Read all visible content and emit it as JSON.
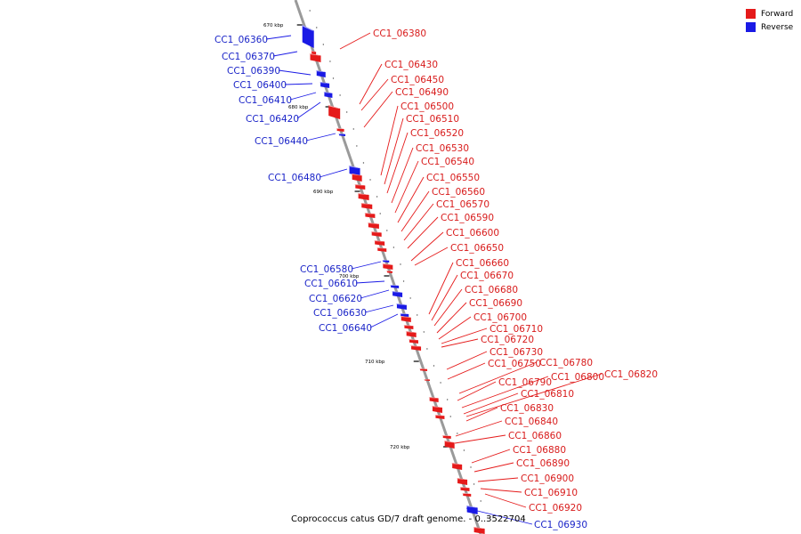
{
  "legend": {
    "forward_label": "Forward",
    "reverse_label": "Reverse",
    "forward_color": "#e51a1a",
    "reverse_color": "#1a1ae5"
  },
  "caption": "Coprococcus catus GD/7 draft genome. - 0..3522704",
  "ticks": [
    "670 kbp",
    "680 kbp",
    "690 kbp",
    "700 kbp",
    "710 kbp",
    "720 kbp"
  ],
  "genes": [
    {
      "id": "CC1_06360",
      "strand": "reverse"
    },
    {
      "id": "CC1_06370",
      "strand": "reverse"
    },
    {
      "id": "CC1_06380",
      "strand": "forward"
    },
    {
      "id": "CC1_06390",
      "strand": "reverse"
    },
    {
      "id": "CC1_06400",
      "strand": "reverse"
    },
    {
      "id": "CC1_06410",
      "strand": "reverse"
    },
    {
      "id": "CC1_06420",
      "strand": "reverse"
    },
    {
      "id": "CC1_06430",
      "strand": "forward"
    },
    {
      "id": "CC1_06440",
      "strand": "reverse"
    },
    {
      "id": "CC1_06450",
      "strand": "forward"
    },
    {
      "id": "CC1_06480",
      "strand": "reverse"
    },
    {
      "id": "CC1_06490",
      "strand": "forward"
    },
    {
      "id": "CC1_06500",
      "strand": "forward"
    },
    {
      "id": "CC1_06510",
      "strand": "forward"
    },
    {
      "id": "CC1_06520",
      "strand": "forward"
    },
    {
      "id": "CC1_06530",
      "strand": "forward"
    },
    {
      "id": "CC1_06540",
      "strand": "forward"
    },
    {
      "id": "CC1_06550",
      "strand": "forward"
    },
    {
      "id": "CC1_06560",
      "strand": "forward"
    },
    {
      "id": "CC1_06570",
      "strand": "forward"
    },
    {
      "id": "CC1_06580",
      "strand": "reverse"
    },
    {
      "id": "CC1_06590",
      "strand": "forward"
    },
    {
      "id": "CC1_06600",
      "strand": "forward"
    },
    {
      "id": "CC1_06610",
      "strand": "reverse"
    },
    {
      "id": "CC1_06620",
      "strand": "reverse"
    },
    {
      "id": "CC1_06630",
      "strand": "reverse"
    },
    {
      "id": "CC1_06640",
      "strand": "reverse"
    },
    {
      "id": "CC1_06650",
      "strand": "forward"
    },
    {
      "id": "CC1_06660",
      "strand": "forward"
    },
    {
      "id": "CC1_06670",
      "strand": "forward"
    },
    {
      "id": "CC1_06680",
      "strand": "forward"
    },
    {
      "id": "CC1_06690",
      "strand": "forward"
    },
    {
      "id": "CC1_06700",
      "strand": "forward"
    },
    {
      "id": "CC1_06710",
      "strand": "forward"
    },
    {
      "id": "CC1_06720",
      "strand": "forward"
    },
    {
      "id": "CC1_06730",
      "strand": "forward"
    },
    {
      "id": "CC1_06750",
      "strand": "forward"
    },
    {
      "id": "CC1_06780",
      "strand": "forward"
    },
    {
      "id": "CC1_06790",
      "strand": "forward"
    },
    {
      "id": "CC1_06800",
      "strand": "forward"
    },
    {
      "id": "CC1_06810",
      "strand": "forward"
    },
    {
      "id": "CC1_06820",
      "strand": "forward"
    },
    {
      "id": "CC1_06830",
      "strand": "forward"
    },
    {
      "id": "CC1_06840",
      "strand": "forward"
    },
    {
      "id": "CC1_06860",
      "strand": "forward"
    },
    {
      "id": "CC1_06880",
      "strand": "forward"
    },
    {
      "id": "CC1_06890",
      "strand": "forward"
    },
    {
      "id": "CC1_06900",
      "strand": "forward"
    },
    {
      "id": "CC1_06910",
      "strand": "forward"
    },
    {
      "id": "CC1_06920",
      "strand": "forward"
    },
    {
      "id": "CC1_06930",
      "strand": "reverse"
    }
  ]
}
